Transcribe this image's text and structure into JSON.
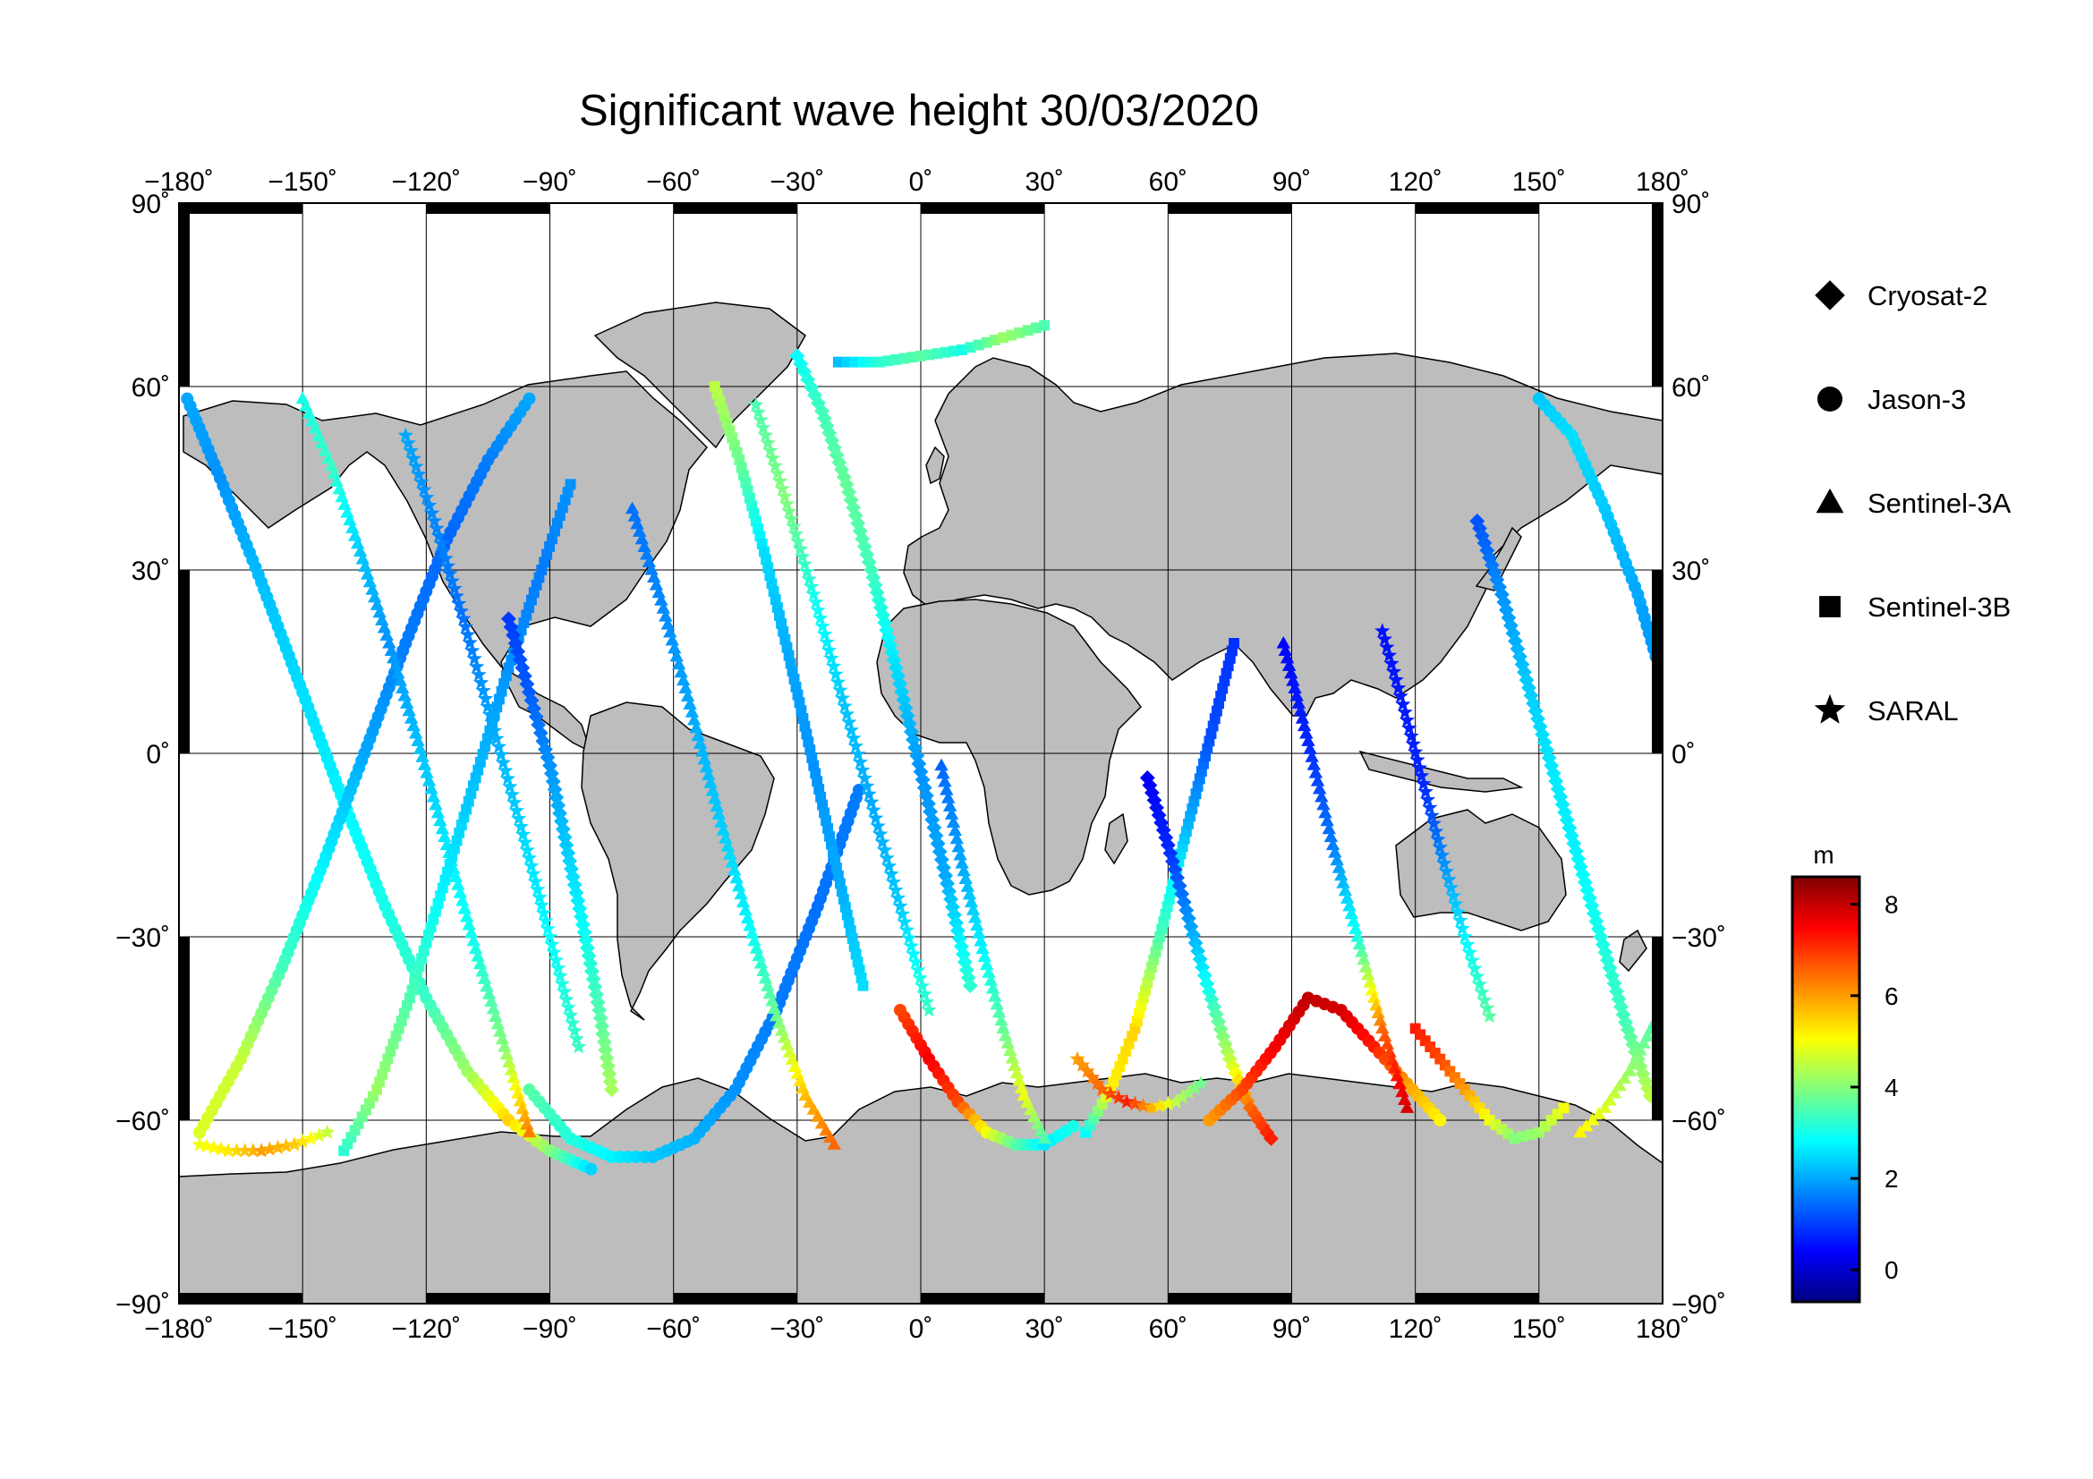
{
  "title": "Significant wave height 30/03/2020",
  "map": {
    "projection": "equirectangular",
    "lon_range": [
      -180,
      180
    ],
    "lat_range": [
      -90,
      90
    ],
    "grid": true,
    "land_color": "#bdbdbd",
    "ocean_color": "#ffffff",
    "lon_ticks": [
      {
        "value": -180,
        "label": "−180˚"
      },
      {
        "value": -150,
        "label": "−150˚"
      },
      {
        "value": -120,
        "label": "−120˚"
      },
      {
        "value": -90,
        "label": "−90˚"
      },
      {
        "value": -60,
        "label": "−60˚"
      },
      {
        "value": -30,
        "label": "−30˚"
      },
      {
        "value": 0,
        "label": "0˚"
      },
      {
        "value": 30,
        "label": "30˚"
      },
      {
        "value": 60,
        "label": "60˚"
      },
      {
        "value": 90,
        "label": "90˚"
      },
      {
        "value": 120,
        "label": "120˚"
      },
      {
        "value": 150,
        "label": "150˚"
      },
      {
        "value": 180,
        "label": "180˚"
      }
    ],
    "lat_ticks": [
      {
        "value": 90,
        "label": "90˚"
      },
      {
        "value": 60,
        "label": "60˚"
      },
      {
        "value": 30,
        "label": "30˚"
      },
      {
        "value": 0,
        "label": "0˚"
      },
      {
        "value": -30,
        "label": "−30˚"
      },
      {
        "value": -60,
        "label": "−60˚"
      },
      {
        "value": -90,
        "label": "−90˚"
      }
    ]
  },
  "legend": {
    "position": "right",
    "items": [
      {
        "label": "Cryosat-2",
        "marker": "diamond"
      },
      {
        "label": "Jason-3",
        "marker": "circle"
      },
      {
        "label": "Sentinel-3A",
        "marker": "triangle"
      },
      {
        "label": "Sentinel-3B",
        "marker": "square"
      },
      {
        "label": "SARAL",
        "marker": "star"
      }
    ]
  },
  "colorbar": {
    "unit": "m",
    "range": [
      -0.7,
      8.6
    ],
    "ticks": [
      {
        "value": 0,
        "label": "0"
      },
      {
        "value": 2,
        "label": "2"
      },
      {
        "value": 4,
        "label": "4"
      },
      {
        "value": 6,
        "label": "6"
      },
      {
        "value": 8,
        "label": "8"
      }
    ],
    "colormap": [
      "#00007f",
      "#0000ff",
      "#007fff",
      "#00ffff",
      "#7fff7f",
      "#ffff00",
      "#ff7f00",
      "#ff0000",
      "#7f0000"
    ]
  },
  "chart_data": {
    "type": "scatter",
    "title": "Significant wave height 30/03/2020",
    "xlabel": "",
    "ylabel": "",
    "xlim": [
      -180,
      180
    ],
    "ylim": [
      -90,
      90
    ],
    "colorbar_label": "m",
    "tracks": [
      {
        "satellite": "Jason-3",
        "lon": [
          -178,
          -170,
          -160,
          -150,
          -140,
          -130,
          -120,
          -110,
          -100,
          -90,
          -80
        ],
        "lat": [
          58,
          45,
          28,
          10,
          -8,
          -25,
          -40,
          -52,
          -60,
          -65,
          -68
        ],
        "swh": [
          2.0,
          1.8,
          2.2,
          2.5,
          2.7,
          3.0,
          3.3,
          4.2,
          5.5,
          4.0,
          2.4
        ]
      },
      {
        "satellite": "Jason-3",
        "lon": [
          -175,
          -165,
          -155,
          -145,
          -135,
          -125,
          -115,
          -105,
          -95
        ],
        "lat": [
          -62,
          -50,
          -35,
          -18,
          0,
          18,
          35,
          48,
          58
        ],
        "swh": [
          4.8,
          4.6,
          3.4,
          2.7,
          2.0,
          1.6,
          1.4,
          1.6,
          2.0
        ]
      },
      {
        "satellite": "Sentinel-3A",
        "lon": [
          -150,
          -143,
          -136,
          -129,
          -122,
          -115,
          -108,
          -101,
          -95
        ],
        "lat": [
          58,
          47,
          33,
          18,
          2,
          -15,
          -32,
          -48,
          -62
        ],
        "swh": [
          3.0,
          3.3,
          2.3,
          1.8,
          2.2,
          2.6,
          3.0,
          4.0,
          6.3
        ]
      },
      {
        "satellite": "Sentinel-3B",
        "lon": [
          -140,
          -132,
          -124,
          -116,
          -108,
          -100,
          -92,
          -85
        ],
        "lat": [
          -65,
          -55,
          -40,
          -22,
          -4,
          14,
          30,
          44
        ],
        "swh": [
          3.2,
          4.2,
          3.5,
          2.7,
          2.2,
          1.8,
          1.6,
          1.8
        ]
      },
      {
        "satellite": "SARAL",
        "lon": [
          -125,
          -118,
          -111,
          -104,
          -97,
          -90,
          -83
        ],
        "lat": [
          52,
          38,
          22,
          5,
          -12,
          -30,
          -48
        ],
        "swh": [
          2.0,
          1.7,
          1.5,
          2.0,
          2.4,
          2.8,
          3.3
        ]
      },
      {
        "satellite": "Cryosat-2",
        "lon": [
          -100,
          -95,
          -90,
          -86,
          -82,
          -78,
          -75
        ],
        "lat": [
          22,
          10,
          -2,
          -15,
          -28,
          -42,
          -55
        ],
        "swh": [
          1.0,
          1.3,
          1.8,
          2.3,
          2.8,
          3.5,
          4.3
        ]
      },
      {
        "satellite": "Jason-3",
        "lon": [
          -95,
          -85,
          -75,
          -65,
          -55,
          -45,
          -35,
          -25,
          -15
        ],
        "lat": [
          -55,
          -63,
          -66,
          -66,
          -63,
          -55,
          -42,
          -25,
          -6
        ],
        "swh": [
          3.6,
          3.1,
          2.7,
          2.3,
          2.1,
          1.8,
          1.6,
          1.5,
          1.6
        ]
      },
      {
        "satellite": "Sentinel-3A",
        "lon": [
          -70,
          -63,
          -56,
          -49,
          -42,
          -35,
          -28,
          -21
        ],
        "lat": [
          40,
          25,
          8,
          -10,
          -27,
          -43,
          -56,
          -64
        ],
        "swh": [
          1.5,
          1.7,
          2.0,
          2.3,
          2.7,
          3.8,
          5.7,
          6.5
        ]
      },
      {
        "satellite": "Sentinel-3B",
        "lon": [
          -50,
          -44,
          -38,
          -32,
          -26,
          -20,
          -14
        ],
        "lat": [
          60,
          48,
          33,
          16,
          -2,
          -20,
          -38
        ],
        "swh": [
          4.5,
          3.8,
          2.5,
          2.0,
          1.8,
          2.0,
          2.5
        ]
      },
      {
        "satellite": "SARAL",
        "lon": [
          -40,
          -33,
          -26,
          -19,
          -12,
          -5,
          2
        ],
        "lat": [
          57,
          42,
          26,
          9,
          -8,
          -25,
          -42
        ],
        "swh": [
          3.5,
          4.0,
          3.0,
          2.3,
          2.0,
          2.3,
          3.3
        ]
      },
      {
        "satellite": "Cryosat-2",
        "lon": [
          -30,
          -24,
          -18,
          -12,
          -6,
          0,
          6,
          12
        ],
        "lat": [
          65,
          56,
          44,
          30,
          14,
          -3,
          -20,
          -38
        ],
        "swh": [
          2.8,
          3.4,
          3.7,
          3.4,
          2.5,
          1.8,
          2.0,
          3.2
        ]
      },
      {
        "satellite": "Jason-3",
        "lon": [
          -5,
          2,
          9,
          16,
          23,
          30,
          37
        ],
        "lat": [
          -42,
          -50,
          -57,
          -62,
          -64,
          -64,
          -61
        ],
        "swh": [
          6.8,
          7.5,
          6.8,
          5.0,
          3.6,
          2.6,
          3.0
        ]
      },
      {
        "satellite": "Sentinel-3A",
        "lon": [
          5,
          10,
          15,
          20,
          25,
          30
        ],
        "lat": [
          -2,
          -18,
          -32,
          -45,
          -56,
          -63
        ],
        "swh": [
          1.4,
          2.0,
          2.7,
          3.7,
          5.0,
          3.5
        ]
      },
      {
        "satellite": "Sentinel-3B",
        "lon": [
          40,
          46,
          52,
          58,
          64,
          70,
          76
        ],
        "lat": [
          -62,
          -55,
          -45,
          -30,
          -14,
          2,
          18
        ],
        "swh": [
          2.8,
          5.2,
          5.5,
          3.5,
          2.3,
          1.2,
          0.9
        ]
      },
      {
        "satellite": "SARAL",
        "lon": [
          38,
          44,
          50,
          56,
          62,
          68
        ],
        "lat": [
          -50,
          -55,
          -57,
          -58,
          -57,
          -54
        ],
        "swh": [
          6.0,
          6.5,
          7.2,
          5.8,
          4.5,
          3.8
        ]
      },
      {
        "satellite": "Cryosat-2",
        "lon": [
          55,
          60,
          65,
          70,
          75,
          80,
          85
        ],
        "lat": [
          -4,
          -15,
          -27,
          -39,
          -50,
          -58,
          -63
        ],
        "swh": [
          0.4,
          0.8,
          1.8,
          3.0,
          4.5,
          6.5,
          7.2
        ]
      },
      {
        "satellite": "Jason-3",
        "lon": [
          70,
          78,
          86,
          94,
          102,
          110,
          118,
          126
        ],
        "lat": [
          -60,
          -55,
          -48,
          -40,
          -42,
          -48,
          -54,
          -60
        ],
        "swh": [
          6.0,
          6.8,
          7.5,
          8.0,
          7.8,
          7.2,
          6.0,
          5.2
        ]
      },
      {
        "satellite": "Sentinel-3A",
        "lon": [
          88,
          94,
          100,
          106,
          112,
          118
        ],
        "lat": [
          18,
          2,
          -15,
          -30,
          -45,
          -58
        ],
        "swh": [
          0.5,
          0.8,
          1.6,
          3.0,
          6.5,
          7.8
        ]
      },
      {
        "satellite": "Sentinel-3B",
        "lon": [
          120,
          126,
          132,
          138,
          144,
          150,
          156
        ],
        "lat": [
          -45,
          -50,
          -55,
          -60,
          -63,
          -62,
          -58
        ],
        "swh": [
          7.2,
          6.8,
          6.0,
          5.0,
          4.0,
          4.2,
          5.0
        ]
      },
      {
        "satellite": "SARAL",
        "lon": [
          112,
          117,
          122,
          127,
          132,
          138
        ],
        "lat": [
          20,
          8,
          -5,
          -18,
          -30,
          -43
        ],
        "swh": [
          0.6,
          0.7,
          0.8,
          1.8,
          2.7,
          3.6
        ]
      },
      {
        "satellite": "Cryosat-2",
        "lon": [
          135,
          141,
          147,
          153,
          159,
          165,
          171,
          177
        ],
        "lat": [
          38,
          26,
          12,
          -2,
          -16,
          -30,
          -44,
          -56
        ],
        "swh": [
          1.2,
          1.8,
          2.3,
          2.6,
          2.7,
          3.0,
          3.4,
          4.5
        ]
      },
      {
        "satellite": "Jason-3",
        "lon": [
          150,
          158,
          166,
          174,
          180
        ],
        "lat": [
          58,
          52,
          40,
          26,
          12
        ],
        "swh": [
          2.3,
          2.5,
          2.3,
          2.0,
          1.8
        ]
      },
      {
        "satellite": "Sentinel-3A",
        "lon": [
          160,
          166,
          172,
          178
        ],
        "lat": [
          -62,
          -58,
          -52,
          -44
        ],
        "swh": [
          5.2,
          4.8,
          4.2,
          3.5
        ]
      },
      {
        "satellite": "SARAL",
        "lon": [
          -175,
          -168,
          -160,
          -152,
          -144
        ],
        "lat": [
          -64,
          -65,
          -65,
          -64,
          -62
        ],
        "swh": [
          5.0,
          5.3,
          6.0,
          5.6,
          4.6
        ]
      },
      {
        "satellite": "Sentinel-3B",
        "lon": [
          -20,
          -10,
          0,
          10,
          20,
          30
        ],
        "lat": [
          64,
          64,
          65,
          66,
          68,
          70
        ],
        "swh": [
          2.2,
          3.2,
          3.6,
          3.0,
          4.2,
          3.5
        ]
      }
    ]
  }
}
